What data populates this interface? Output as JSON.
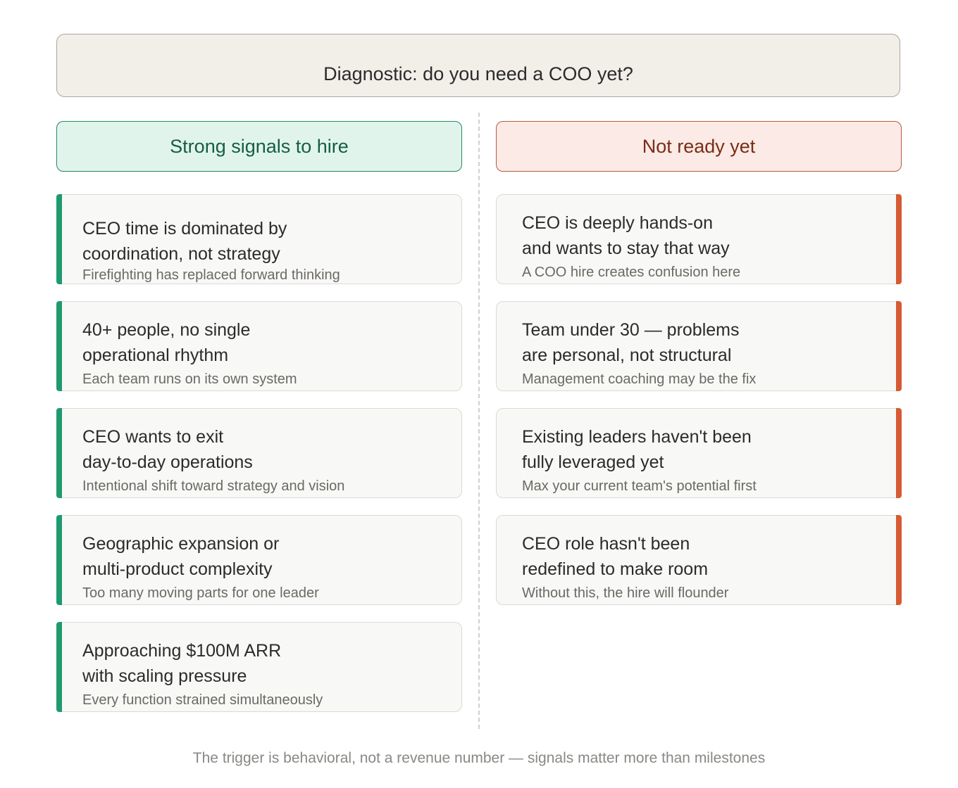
{
  "title": "Diagnostic: do you need a COO yet?",
  "columns": {
    "hire": {
      "header": "Strong signals to hire",
      "items": [
        {
          "line1": "CEO time is dominated by",
          "line2": "coordination, not strategy",
          "sub": "Firefighting has replaced forward thinking"
        },
        {
          "line1": "40+ people, no single",
          "line2": "operational rhythm",
          "sub": "Each team runs on its own system"
        },
        {
          "line1": "CEO wants to exit",
          "line2": "day-to-day operations",
          "sub": "Intentional shift toward strategy and vision"
        },
        {
          "line1": "Geographic expansion or",
          "line2": "multi-product complexity",
          "sub": "Too many moving parts for one leader"
        },
        {
          "line1": "Approaching $100M ARR",
          "line2": "with scaling pressure",
          "sub": "Every function strained simultaneously"
        }
      ]
    },
    "not_ready": {
      "header": "Not ready yet",
      "items": [
        {
          "line1": "CEO is deeply hands-on",
          "line2": "and wants to stay that way",
          "sub": "A COO hire creates confusion here"
        },
        {
          "line1": "Team under 30 — problems",
          "line2": "are personal, not structural",
          "sub": "Management coaching may be the fix"
        },
        {
          "line1": "Existing leaders haven't been",
          "line2": "fully leveraged yet",
          "sub": "Max your current team's potential first"
        },
        {
          "line1": "CEO role hasn't been",
          "line2": "redefined to make room",
          "sub": "Without this, the hire will flounder"
        }
      ]
    }
  },
  "footer": "The trigger is behavioral, not a revenue number — signals matter more than milestones",
  "colors": {
    "hire_accent": "#1f9a6e",
    "not_ready_accent": "#d65a33",
    "title_bg": "#f1efe8"
  }
}
